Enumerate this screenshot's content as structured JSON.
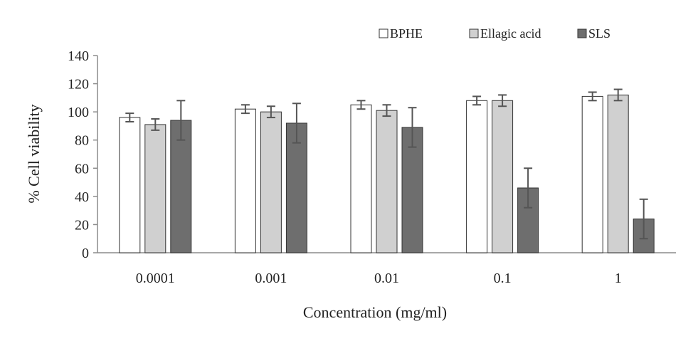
{
  "chart_data": {
    "type": "bar",
    "xlabel": "Concentration (mg/ml)",
    "ylabel": "% Cell viability",
    "categories": [
      "0.0001",
      "0.001",
      "0.01",
      "0.1",
      "1"
    ],
    "ylim": [
      0,
      140
    ],
    "yticks": [
      0,
      20,
      40,
      60,
      80,
      100,
      120,
      140
    ],
    "grid": false,
    "legend_position": "top-right",
    "series": [
      {
        "name": "BPHE",
        "color": "#ffffff",
        "values": [
          96,
          102,
          105,
          108,
          111
        ],
        "errors": [
          3,
          3,
          3,
          3,
          3
        ]
      },
      {
        "name": "Ellagic acid",
        "color": "#d0d0d0",
        "values": [
          91,
          100,
          101,
          108,
          112
        ],
        "errors": [
          4,
          4,
          4,
          4,
          4
        ]
      },
      {
        "name": "SLS",
        "color": "#6e6e6e",
        "values": [
          94,
          92,
          89,
          46,
          24
        ],
        "errors": [
          14,
          14,
          14,
          14,
          14
        ]
      }
    ]
  }
}
